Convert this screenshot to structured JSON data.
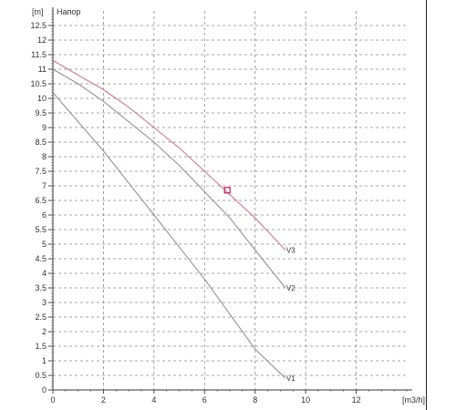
{
  "chart_data": {
    "type": "line",
    "title": "Напор",
    "ylabel": "[m]",
    "xlabel": "[m3/h]",
    "xlim": [
      0,
      14
    ],
    "ylim": [
      0,
      13
    ],
    "xticks": [
      0,
      2,
      4,
      6,
      8,
      10,
      12
    ],
    "yticks": [
      0,
      0.5,
      1,
      1.5,
      2,
      2.5,
      3,
      3.5,
      4,
      4.5,
      5,
      5.5,
      6,
      6.5,
      7,
      7.5,
      8,
      8.5,
      9,
      9.5,
      10,
      10.5,
      11,
      11.5,
      12,
      12.5
    ],
    "grid": true,
    "series": [
      {
        "name": "V1",
        "color": "#9a8e96",
        "x": [
          0,
          1,
          2,
          3,
          4,
          5,
          6,
          7,
          8,
          9.2
        ],
        "y": [
          10.2,
          9.2,
          8.2,
          7.1,
          6.0,
          4.9,
          3.8,
          2.6,
          1.4,
          0.4
        ]
      },
      {
        "name": "V2",
        "color": "#9a8e96",
        "x": [
          0,
          1,
          2,
          3,
          4,
          5,
          6,
          7,
          8,
          9.2
        ],
        "y": [
          11.0,
          10.5,
          9.9,
          9.2,
          8.5,
          7.7,
          6.8,
          5.9,
          4.8,
          3.5
        ]
      },
      {
        "name": "V3",
        "color": "#c97b8b",
        "x": [
          0,
          1,
          2,
          3,
          4,
          5,
          6,
          7,
          8,
          9.2
        ],
        "y": [
          11.3,
          10.8,
          10.3,
          9.7,
          9.0,
          8.3,
          7.5,
          6.7,
          5.9,
          4.8
        ]
      }
    ],
    "operating_point": {
      "x": 6.9,
      "y": 6.85,
      "color": "#c2185b"
    }
  }
}
